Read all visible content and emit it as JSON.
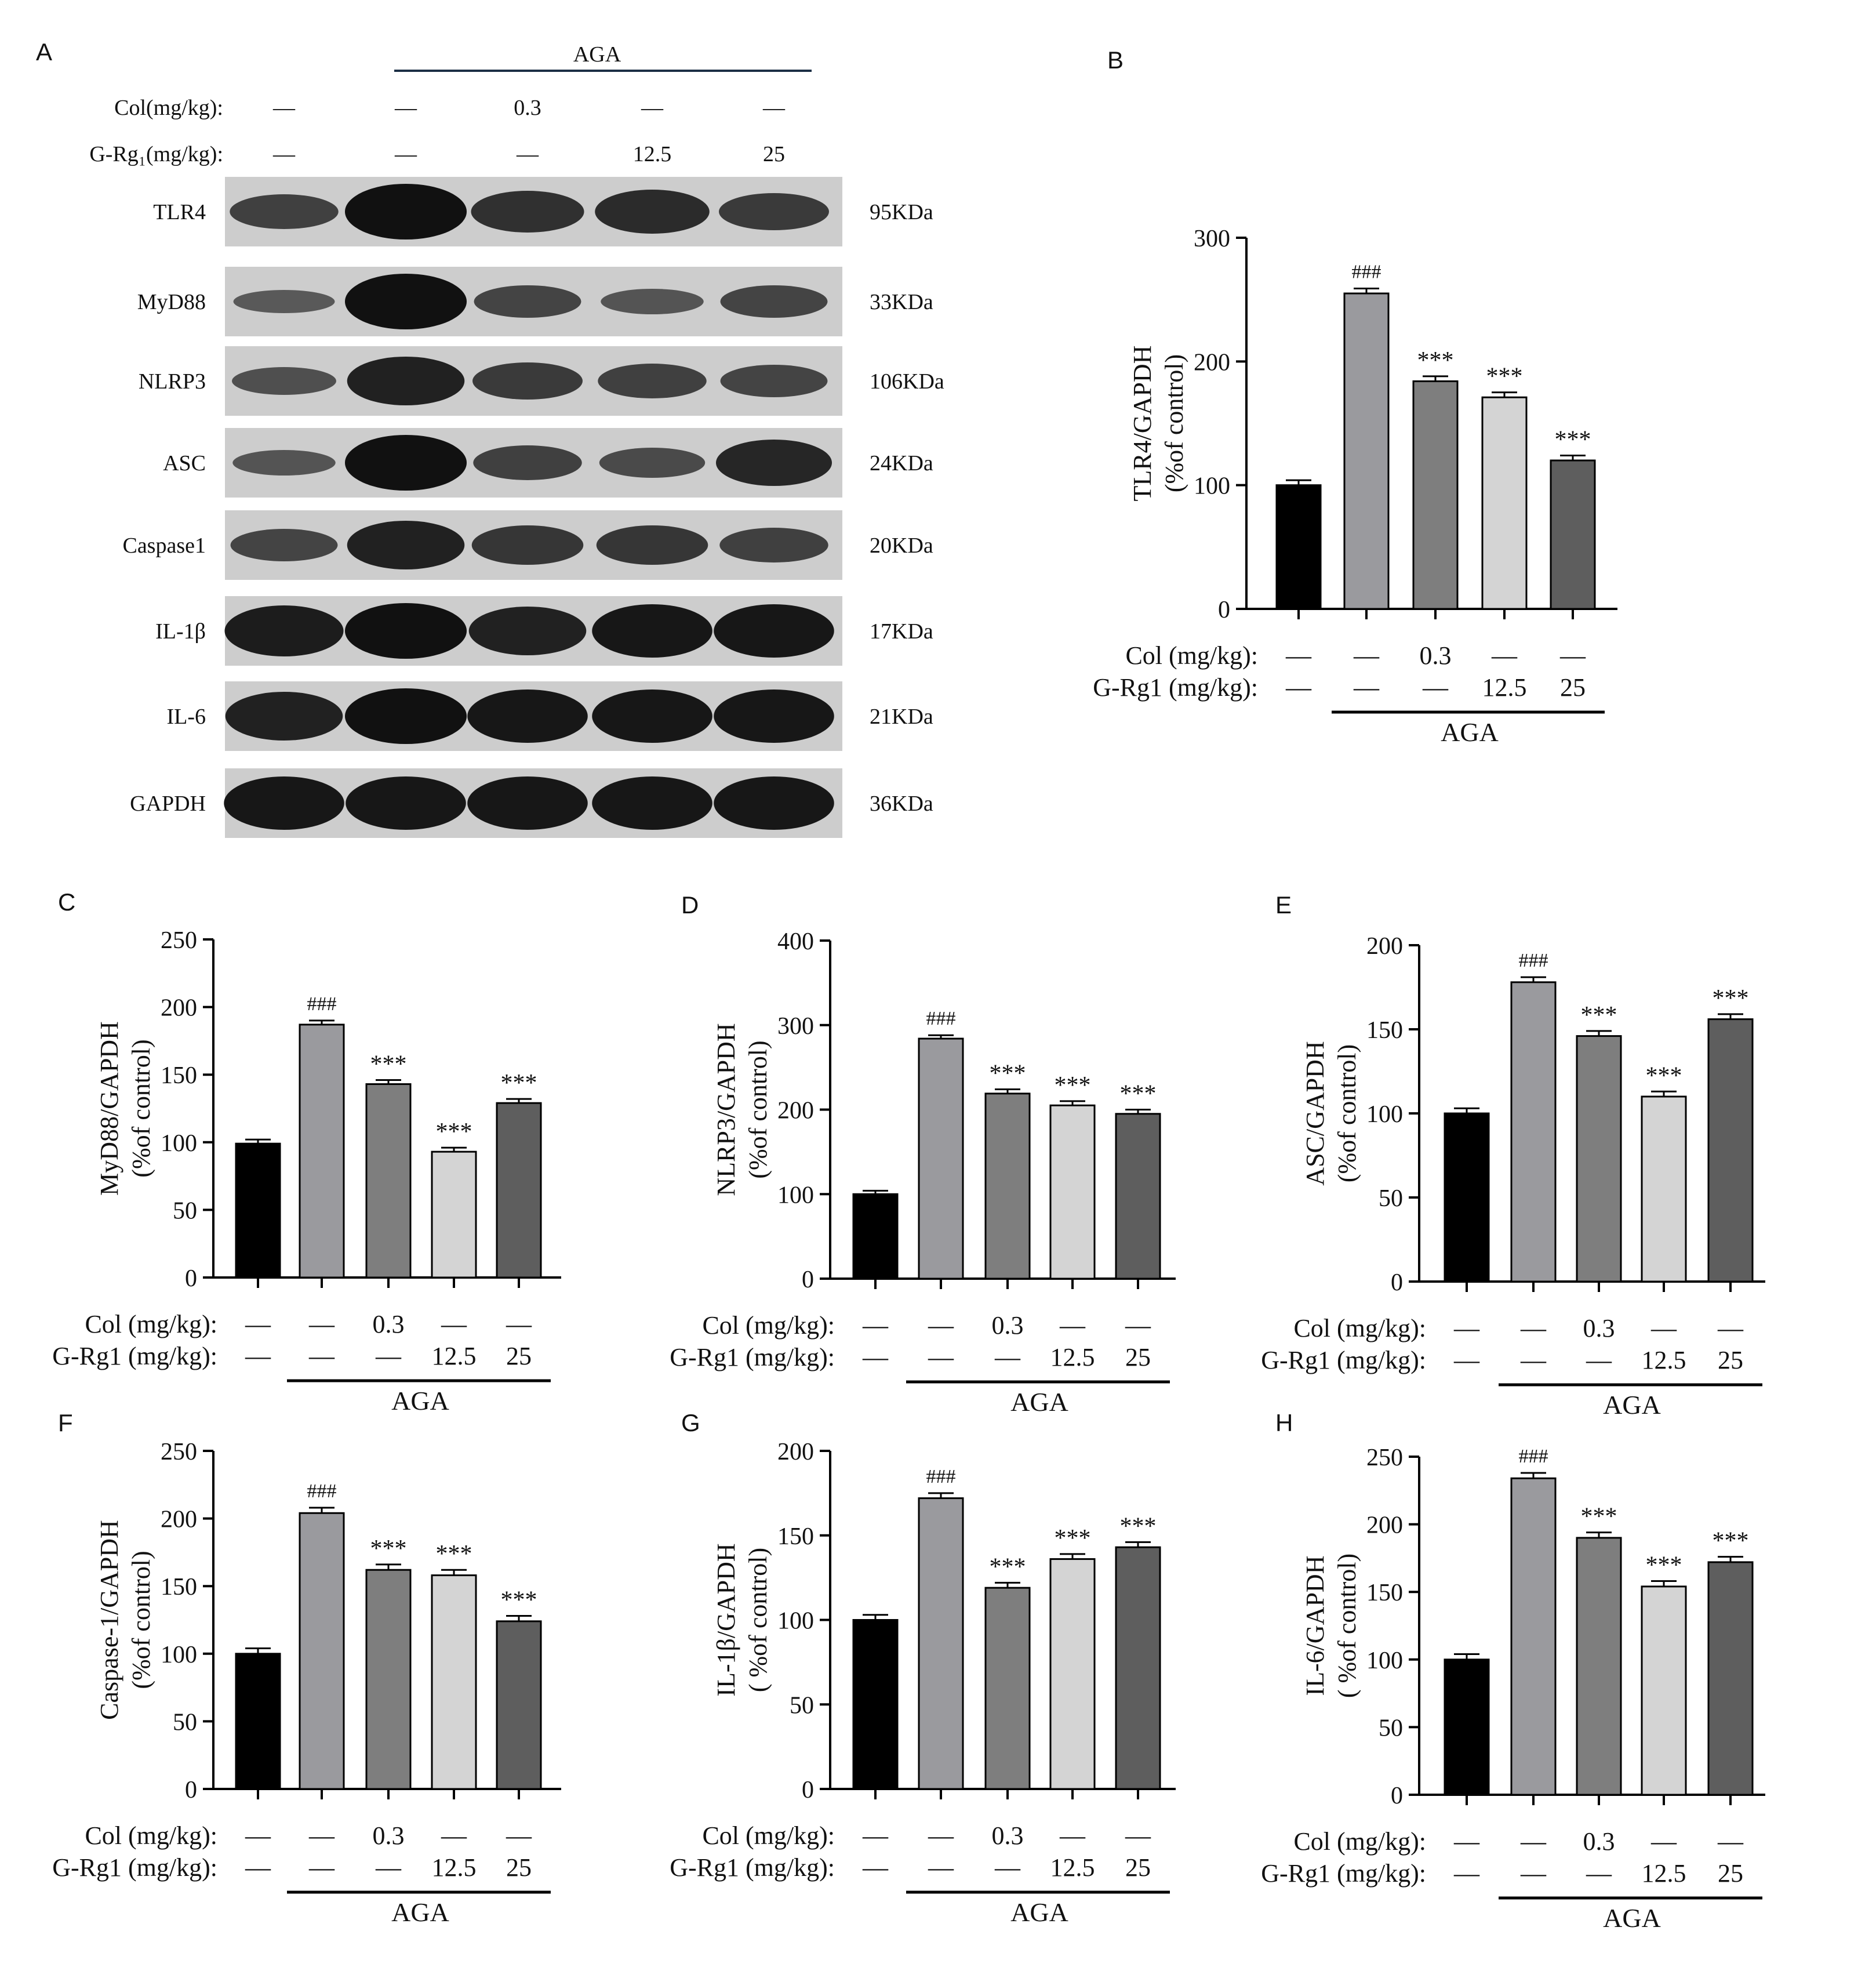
{
  "panel_letters": [
    "A",
    "B",
    "C",
    "D",
    "E",
    "F",
    "G",
    "H"
  ],
  "western_blot": {
    "aga_label": "AGA",
    "row_col_label": "Col(mg/kg):",
    "row_col_values": [
      "—",
      "—",
      "0.3",
      "—",
      "—"
    ],
    "row_rg_label": "G-Rg₁(mg/kg):",
    "row_rg_values": [
      "—",
      "—",
      "—",
      "12.5",
      "25"
    ],
    "proteins": [
      {
        "name": "TLR4",
        "size": "95KDa",
        "intensity": [
          0.55,
          1.0,
          0.7,
          0.75,
          0.6
        ]
      },
      {
        "name": "MyD88",
        "size": "33KDa",
        "intensity": [
          0.3,
          1.0,
          0.5,
          0.35,
          0.5
        ]
      },
      {
        "name": "NLRP3",
        "size": "106KDa",
        "intensity": [
          0.4,
          0.85,
          0.6,
          0.55,
          0.5
        ]
      },
      {
        "name": "ASC",
        "size": "24KDa",
        "intensity": [
          0.35,
          1.0,
          0.55,
          0.45,
          0.8
        ]
      },
      {
        "name": "Caspase1",
        "size": "20KDa",
        "intensity": [
          0.5,
          0.85,
          0.65,
          0.65,
          0.55
        ]
      },
      {
        "name": "IL-1β",
        "size": "17KDa",
        "intensity": [
          0.9,
          1.0,
          0.85,
          0.95,
          0.95
        ]
      },
      {
        "name": "IL-6",
        "size": "21KDa",
        "intensity": [
          0.85,
          1.0,
          0.95,
          0.95,
          0.95
        ]
      },
      {
        "name": "GAPDH",
        "size": "36KDa",
        "intensity": [
          0.95,
          0.95,
          0.95,
          0.95,
          0.95
        ]
      }
    ]
  },
  "treatment_rows": {
    "col_label": "Col (mg/kg):",
    "rg_label": "G-Rg1 (mg/kg):",
    "col_values": [
      "—",
      "—",
      "0.3",
      "—",
      "—"
    ],
    "rg_values": [
      "—",
      "—",
      "—",
      "12.5",
      "25"
    ],
    "aga_label": "AGA"
  },
  "bar_colors": [
    "#000000",
    "#9a9a9e",
    "#7e7e7e",
    "#d4d4d4",
    "#5e5e5e"
  ],
  "chart_data": [
    {
      "panel": "B",
      "type": "bar",
      "ylabel": "TLR4/GAPDH",
      "ylabel2": "(%of control)",
      "ylim": [
        0,
        300
      ],
      "yticks": [
        0,
        100,
        200,
        300
      ],
      "values": [
        100,
        255,
        184,
        171,
        120
      ],
      "errors": [
        4,
        4,
        4,
        4,
        4
      ],
      "annotations": [
        "",
        "###",
        "***",
        "***",
        "***"
      ]
    },
    {
      "panel": "C",
      "type": "bar",
      "ylabel": "MyD88/GAPDH",
      "ylabel2": "(%of control)",
      "ylim": [
        0,
        250
      ],
      "yticks": [
        0,
        50,
        100,
        150,
        200,
        250
      ],
      "values": [
        99,
        187,
        143,
        93,
        129
      ],
      "errors": [
        3,
        3,
        3,
        3,
        3
      ],
      "annotations": [
        "",
        "###",
        "***",
        "***",
        "***"
      ]
    },
    {
      "panel": "D",
      "type": "bar",
      "ylabel": "NLRP3/GAPDH",
      "ylabel2": "(%of control)",
      "ylim": [
        0,
        400
      ],
      "yticks": [
        0,
        100,
        200,
        300,
        400
      ],
      "values": [
        100,
        284,
        219,
        205,
        195
      ],
      "errors": [
        4,
        4,
        5,
        5,
        5
      ],
      "annotations": [
        "",
        "###",
        "***",
        "***",
        "***"
      ]
    },
    {
      "panel": "E",
      "type": "bar",
      "ylabel": "ASC/GAPDH",
      "ylabel2": "(%of control)",
      "ylim": [
        0,
        200
      ],
      "yticks": [
        0,
        50,
        100,
        150,
        200
      ],
      "values": [
        100,
        178,
        146,
        110,
        156
      ],
      "errors": [
        3,
        3,
        3,
        3,
        3
      ],
      "annotations": [
        "",
        "###",
        "***",
        "***",
        "***"
      ]
    },
    {
      "panel": "F",
      "type": "bar",
      "ylabel": "Caspase-1/GAPDH",
      "ylabel2": "(%of control)",
      "ylim": [
        0,
        250
      ],
      "yticks": [
        0,
        50,
        100,
        150,
        200,
        250
      ],
      "values": [
        100,
        204,
        162,
        158,
        124
      ],
      "errors": [
        4,
        4,
        4,
        4,
        4
      ],
      "annotations": [
        "",
        "###",
        "***",
        "***",
        "***"
      ]
    },
    {
      "panel": "G",
      "type": "bar",
      "ylabel": "IL-1β/GAPDH",
      "ylabel2": "( %of control)",
      "ylim": [
        0,
        200
      ],
      "yticks": [
        0,
        50,
        100,
        150,
        200
      ],
      "values": [
        100,
        172,
        119,
        136,
        143
      ],
      "errors": [
        3,
        3,
        3,
        3,
        3
      ],
      "annotations": [
        "",
        "###",
        "***",
        "***",
        "***"
      ]
    },
    {
      "panel": "H",
      "type": "bar",
      "ylabel": "IL-6/GAPDH",
      "ylabel2": "( %of control)",
      "ylim": [
        0,
        250
      ],
      "yticks": [
        0,
        50,
        100,
        150,
        200,
        250
      ],
      "values": [
        100,
        234,
        190,
        154,
        172
      ],
      "errors": [
        4,
        4,
        4,
        4,
        4
      ],
      "annotations": [
        "",
        "###",
        "***",
        "***",
        "***"
      ]
    }
  ]
}
